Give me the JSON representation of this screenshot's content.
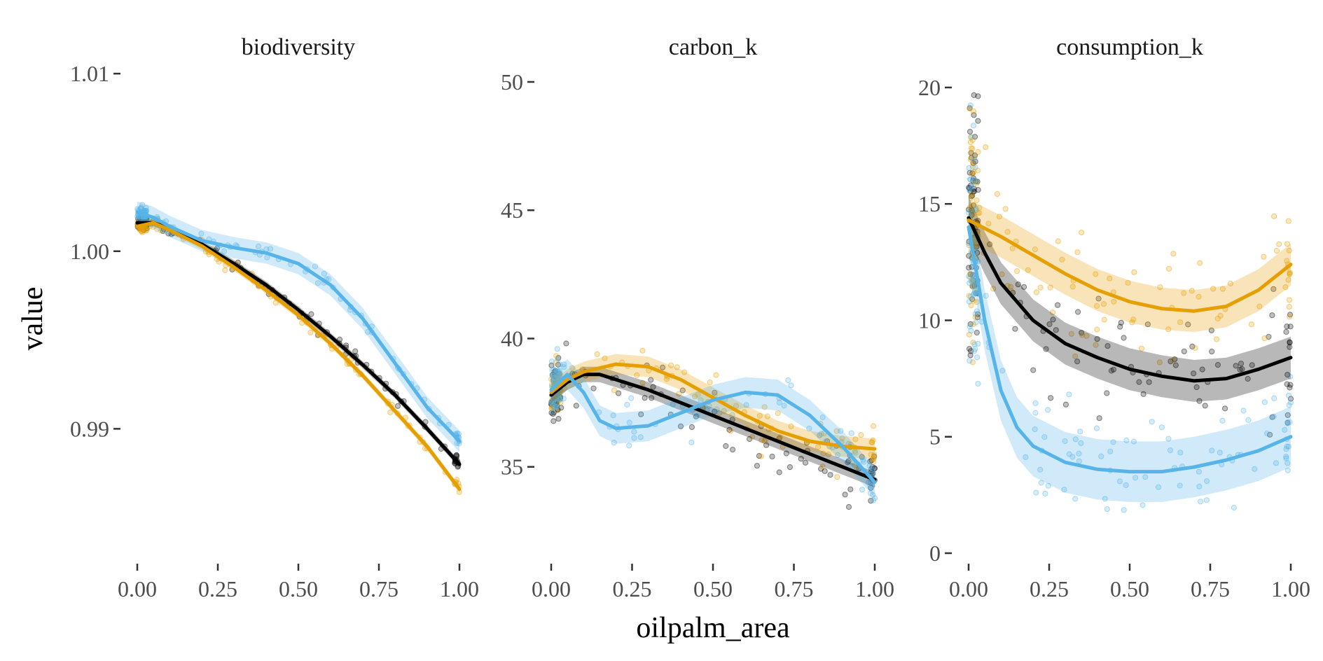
{
  "chart_data": {
    "type": "scatter",
    "xlabel": "oilpalm_area",
    "ylabel": "value",
    "grid": false,
    "legend": "none",
    "series_colors": [
      "#000000",
      "#E69F00",
      "#56B4E9"
    ],
    "x_ticks": [
      "0.00",
      "0.25",
      "0.50",
      "0.75",
      "1.00"
    ],
    "xlim": [
      -0.05,
      1.05
    ],
    "panels": [
      {
        "title": "biodiversity",
        "ylim": [
          0.9828,
          1.0104
        ],
        "y_ticks": [
          {
            "value": 0.99,
            "label": "0.99"
          },
          {
            "value": 1.0,
            "label": "1.00"
          },
          {
            "value": 1.01,
            "label": "1.01"
          }
        ],
        "series": [
          {
            "color": "#000000",
            "smooth": [
              [
                0,
                1.0016
              ],
              [
                0.05,
                1.0016
              ],
              [
                0.1,
                1.0013
              ],
              [
                0.2,
                1.0004
              ],
              [
                0.3,
                0.9993
              ],
              [
                0.4,
                0.9981
              ],
              [
                0.5,
                0.9967
              ],
              [
                0.6,
                0.9952
              ],
              [
                0.7,
                0.9936
              ],
              [
                0.8,
                0.9919
              ],
              [
                0.9,
                0.99
              ],
              [
                1.0,
                0.988
              ]
            ],
            "band": 0.0002
          },
          {
            "color": "#E69F00",
            "smooth": [
              [
                0,
                1.0014
              ],
              [
                0.05,
                1.0016
              ],
              [
                0.1,
                1.0012
              ],
              [
                0.2,
                1.0003
              ],
              [
                0.3,
                0.9991
              ],
              [
                0.4,
                0.9978
              ],
              [
                0.5,
                0.9964
              ],
              [
                0.6,
                0.9948
              ],
              [
                0.7,
                0.993
              ],
              [
                0.8,
                0.991
              ],
              [
                0.9,
                0.989
              ],
              [
                1.0,
                0.9866
              ]
            ],
            "band": 0.0002
          },
          {
            "color": "#56B4E9",
            "smooth": [
              [
                0,
                1.0022
              ],
              [
                0.05,
                1.0019
              ],
              [
                0.1,
                1.0014
              ],
              [
                0.2,
                1.0006
              ],
              [
                0.3,
                1.0002
              ],
              [
                0.4,
                0.9999
              ],
              [
                0.5,
                0.9993
              ],
              [
                0.6,
                0.9981
              ],
              [
                0.7,
                0.9962
              ],
              [
                0.8,
                0.9937
              ],
              [
                0.9,
                0.9912
              ],
              [
                1.0,
                0.9893
              ]
            ],
            "band": 0.0006
          }
        ]
      },
      {
        "title": "carbon_k",
        "ylim": [
          31.5,
          50.6
        ],
        "y_ticks": [
          {
            "value": 35,
            "label": "35"
          },
          {
            "value": 40,
            "label": "40"
          },
          {
            "value": 45,
            "label": "45"
          },
          {
            "value": 50,
            "label": "50"
          }
        ],
        "series": [
          {
            "color": "#000000",
            "smooth": [
              [
                0,
                37.8
              ],
              [
                0.05,
                38.3
              ],
              [
                0.1,
                38.6
              ],
              [
                0.15,
                38.6
              ],
              [
                0.2,
                38.4
              ],
              [
                0.3,
                38.0
              ],
              [
                0.4,
                37.5
              ],
              [
                0.5,
                37.0
              ],
              [
                0.6,
                36.5
              ],
              [
                0.7,
                36.0
              ],
              [
                0.8,
                35.5
              ],
              [
                0.9,
                35.0
              ],
              [
                1.0,
                34.5
              ]
            ],
            "band": 0.3
          },
          {
            "color": "#E69F00",
            "smooth": [
              [
                0,
                37.9
              ],
              [
                0.05,
                38.4
              ],
              [
                0.1,
                38.7
              ],
              [
                0.2,
                39.0
              ],
              [
                0.3,
                38.9
              ],
              [
                0.4,
                38.4
              ],
              [
                0.5,
                37.7
              ],
              [
                0.6,
                37.0
              ],
              [
                0.7,
                36.4
              ],
              [
                0.8,
                36.0
              ],
              [
                0.9,
                35.8
              ],
              [
                1.0,
                35.7
              ]
            ],
            "band": 0.4
          },
          {
            "color": "#56B4E9",
            "smooth": [
              [
                0,
                38.0
              ],
              [
                0.05,
                38.6
              ],
              [
                0.1,
                37.9
              ],
              [
                0.15,
                36.8
              ],
              [
                0.2,
                36.5
              ],
              [
                0.3,
                36.6
              ],
              [
                0.4,
                37.1
              ],
              [
                0.5,
                37.6
              ],
              [
                0.6,
                37.9
              ],
              [
                0.7,
                37.8
              ],
              [
                0.8,
                37.0
              ],
              [
                0.9,
                35.8
              ],
              [
                1.0,
                34.4
              ]
            ],
            "band": 0.6
          }
        ]
      },
      {
        "title": "consumption_k",
        "ylim": [
          -0.15,
          20.9
        ],
        "y_ticks": [
          {
            "value": 0,
            "label": "0"
          },
          {
            "value": 5,
            "label": "5"
          },
          {
            "value": 10,
            "label": "10"
          },
          {
            "value": 15,
            "label": "15"
          },
          {
            "value": 20,
            "label": "20"
          }
        ],
        "series": [
          {
            "color": "#000000",
            "smooth": [
              [
                0,
                14.4
              ],
              [
                0.05,
                12.9
              ],
              [
                0.1,
                11.6
              ],
              [
                0.2,
                10.0
              ],
              [
                0.3,
                9.0
              ],
              [
                0.4,
                8.4
              ],
              [
                0.5,
                7.9
              ],
              [
                0.6,
                7.6
              ],
              [
                0.7,
                7.4
              ],
              [
                0.8,
                7.5
              ],
              [
                0.9,
                7.9
              ],
              [
                1.0,
                8.4
              ]
            ],
            "band": 0.9
          },
          {
            "color": "#E69F00",
            "smooth": [
              [
                0,
                14.3
              ],
              [
                0.1,
                13.6
              ],
              [
                0.2,
                12.8
              ],
              [
                0.3,
                12.0
              ],
              [
                0.4,
                11.3
              ],
              [
                0.5,
                10.8
              ],
              [
                0.6,
                10.5
              ],
              [
                0.7,
                10.4
              ],
              [
                0.8,
                10.6
              ],
              [
                0.9,
                11.3
              ],
              [
                1.0,
                12.4
              ]
            ],
            "band": 0.9
          },
          {
            "color": "#56B4E9",
            "smooth": [
              [
                0,
                14.0
              ],
              [
                0.05,
                10.0
              ],
              [
                0.1,
                7.0
              ],
              [
                0.15,
                5.4
              ],
              [
                0.2,
                4.6
              ],
              [
                0.3,
                3.9
              ],
              [
                0.4,
                3.6
              ],
              [
                0.5,
                3.5
              ],
              [
                0.6,
                3.5
              ],
              [
                0.7,
                3.7
              ],
              [
                0.8,
                4.0
              ],
              [
                0.9,
                4.4
              ],
              [
                1.0,
                5.0
              ]
            ],
            "band": 1.3
          }
        ]
      }
    ]
  }
}
